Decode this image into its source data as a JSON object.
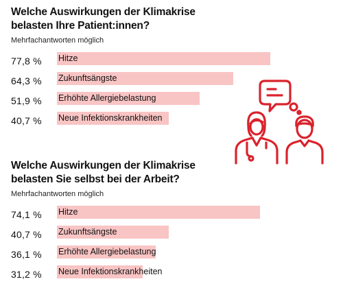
{
  "colors": {
    "bar": "#f9c4c4",
    "accent": "#d9232d",
    "text": "#111111"
  },
  "illustration": {
    "icon": "doctor-patient-speech-bubble-icon"
  },
  "chart_data": [
    {
      "type": "bar",
      "orientation": "horizontal",
      "title": "Welche Auswirkungen der Klimakrise belasten Ihre Patient:innen?",
      "subtitle": "Mehrfachantworten möglich",
      "categories": [
        "Hitze",
        "Zukunftsängste",
        "Erhöhte Allergiebelastung",
        "Neue Infektionskrankheiten"
      ],
      "values": [
        77.8,
        64.3,
        51.9,
        40.7
      ],
      "value_labels": [
        "77,8 %",
        "64,3 %",
        "51,9 %",
        "40,7 %"
      ],
      "unit": "%",
      "xlim": [
        0,
        100
      ],
      "grid": false
    },
    {
      "type": "bar",
      "orientation": "horizontal",
      "title": "Welche Auswirkungen der Klimakrise belasten Sie selbst bei der Arbeit?",
      "subtitle": "Mehrfachantworten möglich",
      "categories": [
        "Hitze",
        "Zukunftsängste",
        "Erhöhte Allergiebelastung",
        "Neue Infektionskrankheiten"
      ],
      "values": [
        74.1,
        40.7,
        36.1,
        31.2
      ],
      "value_labels": [
        "74,1 %",
        "40,7 %",
        "36,1 %",
        "31,2 %"
      ],
      "unit": "%",
      "xlim": [
        0,
        100
      ],
      "grid": false
    }
  ]
}
